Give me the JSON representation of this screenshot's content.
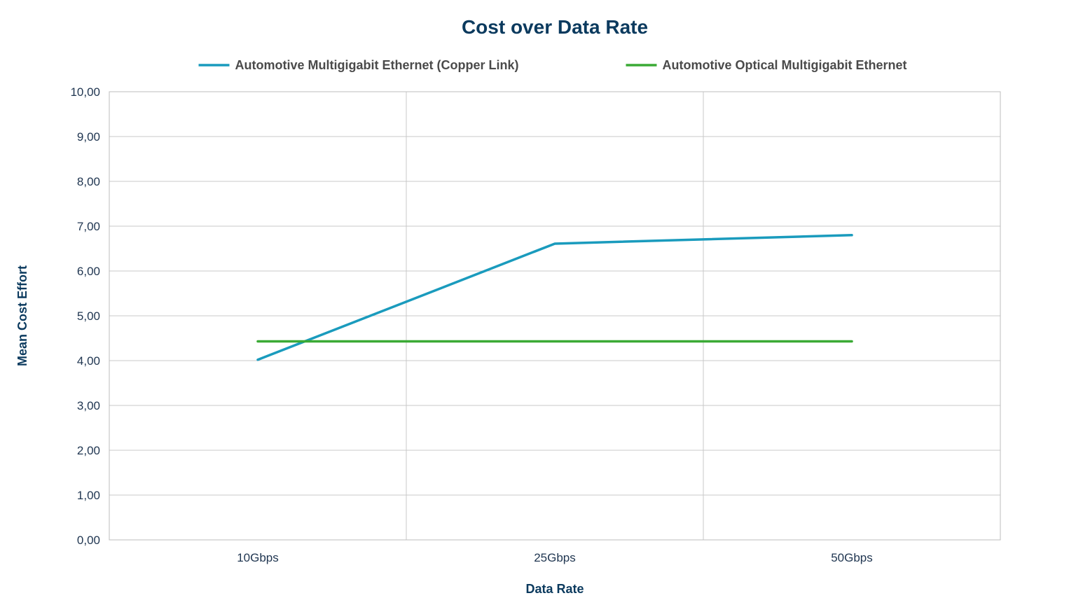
{
  "colors": {
    "title": "#0b3a5e",
    "axis_title": "#0b3a5e",
    "tick_text": "#1f3550",
    "legend_text": "#4a4a4a",
    "grid": "#c8c8c8",
    "plot_border": "#bdbdbd"
  },
  "chart_data": {
    "type": "line",
    "title": "Cost over Data Rate",
    "xlabel": "Data Rate",
    "ylabel": "Mean Cost Effort",
    "categories": [
      "10Gbps",
      "25Gbps",
      "50Gbps"
    ],
    "y_tick_labels": [
      "0,00",
      "1,00",
      "2,00",
      "3,00",
      "4,00",
      "5,00",
      "6,00",
      "7,00",
      "8,00",
      "9,00",
      "10,00"
    ],
    "ylim": [
      0,
      10
    ],
    "y_step": 1,
    "grid": true,
    "legend_position": "top",
    "series": [
      {
        "name": "Automotive Multigigabit Ethernet (Copper Link)",
        "color": "#1a9bbd",
        "values": [
          4.02,
          6.61,
          6.8
        ]
      },
      {
        "name": "Automotive Optical Multigigabit Ethernet",
        "color": "#3aaa35",
        "values": [
          4.43,
          4.43,
          4.43
        ]
      }
    ]
  }
}
